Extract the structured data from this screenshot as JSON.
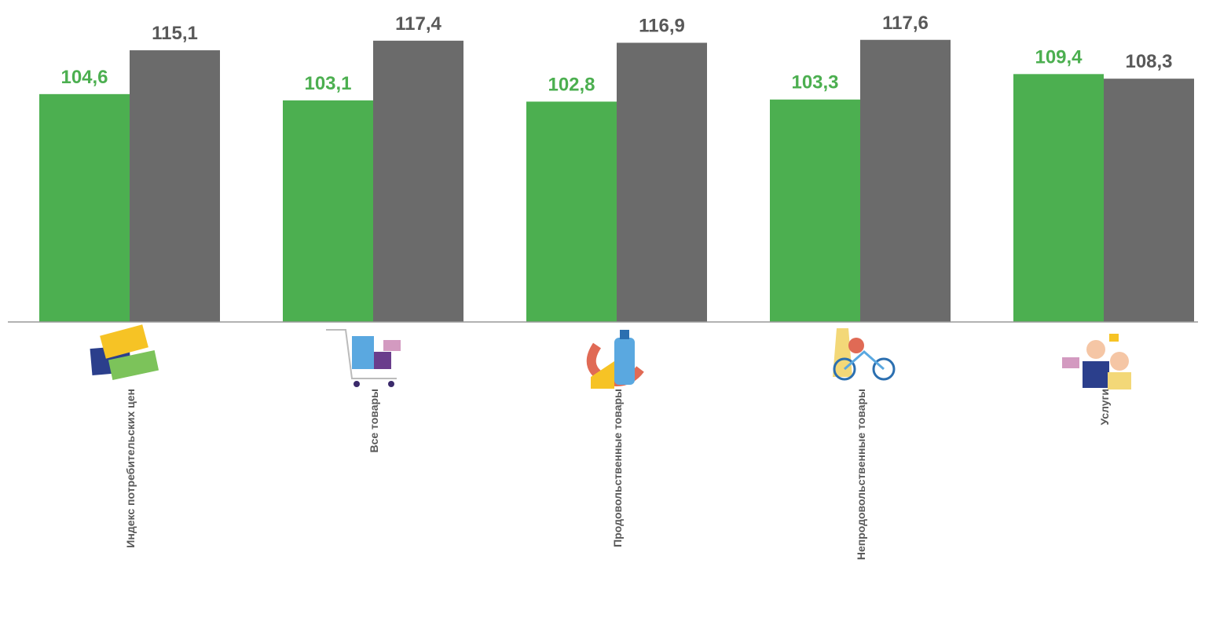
{
  "chart_data": {
    "type": "bar",
    "categories": [
      "Индекс потребительских цен",
      "Все товары",
      "Продовольственные товары",
      "Непродовольственные товары",
      "Услуги"
    ],
    "series": [
      {
        "color": "#4caf50",
        "values": [
          104.6,
          103.1,
          102.8,
          103.3,
          109.4
        ],
        "value_labels": [
          "104,6",
          "103,1",
          "102,8",
          "103,3",
          "109,4"
        ]
      },
      {
        "color": "#6b6b6b",
        "values": [
          115.1,
          117.4,
          116.9,
          117.6,
          108.3
        ],
        "value_labels": [
          "115,1",
          "117,4",
          "116,9",
          "117,6",
          "108,3"
        ]
      }
    ],
    "ylim": [
      50,
      120
    ]
  }
}
